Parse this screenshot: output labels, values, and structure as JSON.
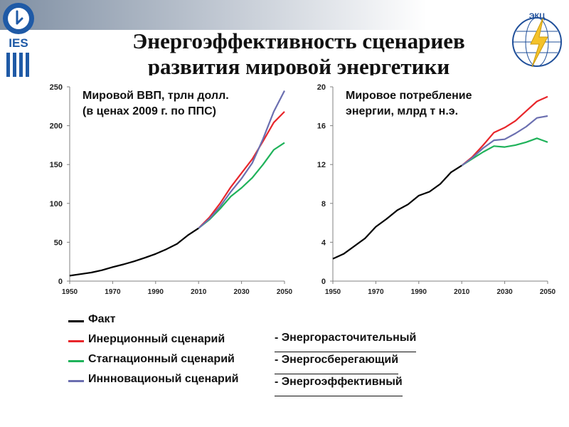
{
  "slide": {
    "title_line1": "Энергоэффективность сценариев",
    "title_line2": "развития мировой энергетики",
    "logo_left_text": "IES",
    "logo_right_text": "ЭКЦ",
    "logo_right_ring_text": "мировая энергетика",
    "colors": {
      "fact": "#000000",
      "inertial": "#e8262b",
      "stagnation": "#1fb25a",
      "innovation": "#6b6fb0",
      "topbar": "#7f8fa3"
    }
  },
  "legend": {
    "items": [
      {
        "label": "Факт",
        "color": "#000000"
      },
      {
        "label": "Инерционный сценарий",
        "color": "#e8262b"
      },
      {
        "label": "Стагнационный сценарий",
        "color": "#1fb25a"
      },
      {
        "label": "Инн­новационый сценарий",
        "color": "#6b6fb0"
      }
    ],
    "notes": [
      "- Энергорасточительный",
      "- Энергосберегающий",
      "- Энергоэффективный"
    ]
  },
  "chart_data": [
    {
      "type": "line",
      "title": "Мировой ВВП, трлн долл. (в ценах 2009 г. по ППС)",
      "title_lines": [
        "Мировой ВВП, трлн долл.",
        "(в ценах 2009 г. по ППС)"
      ],
      "xlim": [
        1950,
        2050
      ],
      "ylim": [
        0,
        250
      ],
      "x_ticks": [
        "1950",
        "1970",
        "1990",
        "2010",
        "2030",
        "2050"
      ],
      "y_ticks": [
        "0",
        "50",
        "100",
        "150",
        "200",
        "250"
      ],
      "grid": false,
      "series": [
        {
          "name": "Факт",
          "color": "#000000",
          "points": [
            [
              1950,
              7
            ],
            [
              1955,
              9
            ],
            [
              1960,
              11
            ],
            [
              1965,
              14
            ],
            [
              1970,
              18
            ],
            [
              1975,
              21.5
            ],
            [
              1980,
              25.5
            ],
            [
              1985,
              30
            ],
            [
              1990,
              35
            ],
            [
              1995,
              41
            ],
            [
              2000,
              48
            ],
            [
              2005,
              59
            ],
            [
              2010,
              68
            ]
          ]
        },
        {
          "name": "Инерционный сценарий",
          "color": "#e8262b",
          "points": [
            [
              2010,
              68
            ],
            [
              2015,
              82
            ],
            [
              2020,
              100
            ],
            [
              2025,
              121
            ],
            [
              2030,
              139
            ],
            [
              2035,
              157
            ],
            [
              2040,
              180
            ],
            [
              2045,
              204
            ],
            [
              2050,
              218
            ]
          ]
        },
        {
          "name": "Стагнационный сценарий",
          "color": "#1fb25a",
          "points": [
            [
              2010,
              68
            ],
            [
              2015,
              79
            ],
            [
              2020,
              93
            ],
            [
              2025,
              109
            ],
            [
              2030,
              120
            ],
            [
              2035,
              133
            ],
            [
              2040,
              150
            ],
            [
              2045,
              169
            ],
            [
              2050,
              178
            ]
          ]
        },
        {
          "name": "Инн­новационый сценарий",
          "color": "#6b6fb0",
          "points": [
            [
              2010,
              68
            ],
            [
              2015,
              80
            ],
            [
              2020,
              96
            ],
            [
              2025,
              115
            ],
            [
              2030,
              132
            ],
            [
              2035,
              152
            ],
            [
              2040,
              183
            ],
            [
              2045,
              218
            ],
            [
              2050,
              245
            ]
          ]
        }
      ]
    },
    {
      "type": "line",
      "title": "Мировое потребление энергии, млрд т н.э.",
      "title_lines": [
        "Мировое потребление",
        "энергии, млрд т н.э."
      ],
      "xlim": [
        1950,
        2050
      ],
      "ylim": [
        0,
        20
      ],
      "x_ticks": [
        "1950",
        "1970",
        "1990",
        "2010",
        "2030",
        "2050"
      ],
      "y_ticks": [
        "0",
        "4",
        "8",
        "12",
        "16",
        "20"
      ],
      "grid": false,
      "series": [
        {
          "name": "Факт",
          "color": "#000000",
          "points": [
            [
              1950,
              2.3
            ],
            [
              1955,
              2.8
            ],
            [
              1960,
              3.6
            ],
            [
              1965,
              4.4
            ],
            [
              1970,
              5.6
            ],
            [
              1975,
              6.4
            ],
            [
              1980,
              7.3
            ],
            [
              1985,
              7.9
            ],
            [
              1990,
              8.8
            ],
            [
              1995,
              9.2
            ],
            [
              2000,
              10
            ],
            [
              2005,
              11.2
            ],
            [
              2010,
              11.9
            ]
          ]
        },
        {
          "name": "Инерционный сценарий",
          "color": "#e8262b",
          "points": [
            [
              2010,
              11.9
            ],
            [
              2015,
              12.8
            ],
            [
              2020,
              14
            ],
            [
              2025,
              15.3
            ],
            [
              2030,
              15.8
            ],
            [
              2035,
              16.5
            ],
            [
              2040,
              17.5
            ],
            [
              2045,
              18.5
            ],
            [
              2050,
              19
            ]
          ]
        },
        {
          "name": "Стагнационный сценарий",
          "color": "#1fb25a",
          "points": [
            [
              2010,
              11.9
            ],
            [
              2015,
              12.6
            ],
            [
              2020,
              13.3
            ],
            [
              2025,
              13.9
            ],
            [
              2030,
              13.8
            ],
            [
              2035,
              14
            ],
            [
              2040,
              14.3
            ],
            [
              2045,
              14.7
            ],
            [
              2050,
              14.3
            ]
          ]
        },
        {
          "name": "Инн­новационый сценарий",
          "color": "#6b6fb0",
          "points": [
            [
              2010,
              11.9
            ],
            [
              2015,
              12.7
            ],
            [
              2020,
              13.7
            ],
            [
              2025,
              14.5
            ],
            [
              2030,
              14.6
            ],
            [
              2035,
              15.2
            ],
            [
              2040,
              15.9
            ],
            [
              2045,
              16.8
            ],
            [
              2050,
              17
            ]
          ]
        }
      ]
    }
  ]
}
